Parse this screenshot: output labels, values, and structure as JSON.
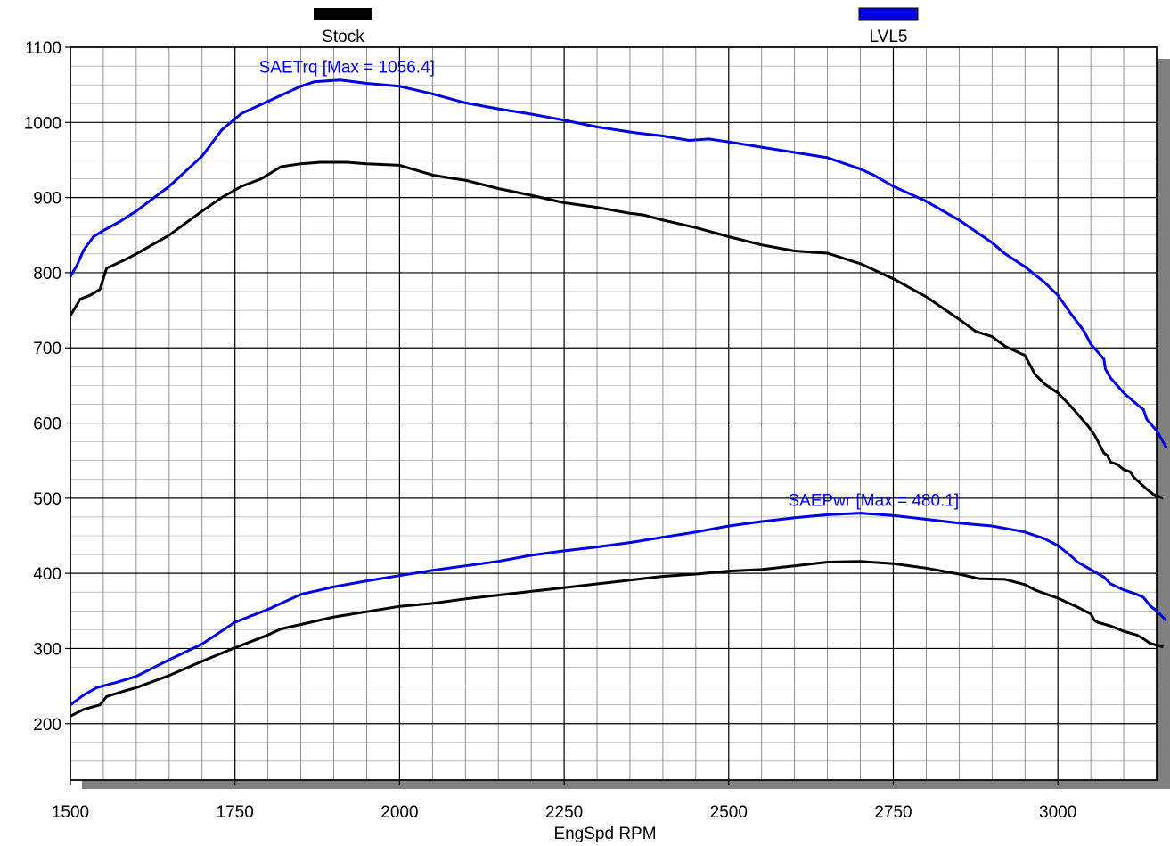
{
  "chart_data": {
    "type": "line",
    "title": "",
    "xlabel": "EngSpd RPM",
    "ylabel": "",
    "xlim": [
      1500,
      3150
    ],
    "ylim": [
      125,
      1100
    ],
    "x_ticks": [
      1500,
      1750,
      2000,
      2250,
      2500,
      2750,
      3000
    ],
    "y_ticks": [
      200,
      300,
      400,
      500,
      600,
      700,
      800,
      900,
      1000,
      1100
    ],
    "grid": true,
    "legend": {
      "placement": "top",
      "entries": [
        {
          "name": "Stock",
          "color": "#000000"
        },
        {
          "name": "LVL5",
          "color": "#0000e0"
        }
      ]
    },
    "annotations": [
      {
        "text": "SAETrq [Max = 1056.4]",
        "color": "#0000e0",
        "x": 1920,
        "y": 1066
      },
      {
        "text": "SAEPwr [Max = 480.1]",
        "color": "#0000e0",
        "x": 2720,
        "y": 490
      }
    ],
    "series": [
      {
        "run": "LVL5",
        "quantity": "SAETrq",
        "color": "#0000e0",
        "points": [
          [
            1500,
            795
          ],
          [
            1510,
            810
          ],
          [
            1520,
            830
          ],
          [
            1535,
            848
          ],
          [
            1550,
            856
          ],
          [
            1575,
            868
          ],
          [
            1600,
            882
          ],
          [
            1650,
            915
          ],
          [
            1700,
            955
          ],
          [
            1730,
            990
          ],
          [
            1760,
            1012
          ],
          [
            1800,
            1028
          ],
          [
            1850,
            1048
          ],
          [
            1870,
            1054
          ],
          [
            1910,
            1056.4
          ],
          [
            1950,
            1052
          ],
          [
            2000,
            1048
          ],
          [
            2050,
            1038
          ],
          [
            2100,
            1026
          ],
          [
            2150,
            1018
          ],
          [
            2200,
            1011
          ],
          [
            2250,
            1003
          ],
          [
            2300,
            994
          ],
          [
            2360,
            986
          ],
          [
            2400,
            982
          ],
          [
            2440,
            976
          ],
          [
            2470,
            978
          ],
          [
            2500,
            974
          ],
          [
            2550,
            967
          ],
          [
            2600,
            960
          ],
          [
            2650,
            953
          ],
          [
            2700,
            938
          ],
          [
            2720,
            930
          ],
          [
            2750,
            915
          ],
          [
            2800,
            895
          ],
          [
            2850,
            870
          ],
          [
            2870,
            858
          ],
          [
            2900,
            840
          ],
          [
            2920,
            825
          ],
          [
            2950,
            808
          ],
          [
            2980,
            787
          ],
          [
            3000,
            770
          ],
          [
            3020,
            745
          ],
          [
            3040,
            722
          ],
          [
            3050,
            705
          ],
          [
            3065,
            690
          ],
          [
            3070,
            685
          ],
          [
            3072,
            672
          ],
          [
            3080,
            660
          ],
          [
            3100,
            640
          ],
          [
            3120,
            625
          ],
          [
            3130,
            618
          ],
          [
            3135,
            605
          ],
          [
            3150,
            590
          ],
          [
            3165,
            567
          ]
        ]
      },
      {
        "run": "Stock",
        "quantity": "SAETrq",
        "color": "#000000",
        "points": [
          [
            1500,
            743
          ],
          [
            1515,
            765
          ],
          [
            1530,
            770
          ],
          [
            1545,
            778
          ],
          [
            1555,
            806
          ],
          [
            1580,
            816
          ],
          [
            1600,
            825
          ],
          [
            1650,
            850
          ],
          [
            1700,
            882
          ],
          [
            1730,
            900
          ],
          [
            1760,
            915
          ],
          [
            1790,
            925
          ],
          [
            1820,
            941
          ],
          [
            1850,
            945
          ],
          [
            1880,
            947
          ],
          [
            1920,
            947
          ],
          [
            1950,
            945
          ],
          [
            2000,
            943
          ],
          [
            2050,
            930
          ],
          [
            2070,
            927
          ],
          [
            2100,
            923
          ],
          [
            2150,
            912
          ],
          [
            2200,
            903
          ],
          [
            2250,
            893
          ],
          [
            2300,
            887
          ],
          [
            2350,
            879
          ],
          [
            2370,
            877
          ],
          [
            2400,
            870
          ],
          [
            2450,
            860
          ],
          [
            2500,
            848
          ],
          [
            2550,
            837
          ],
          [
            2600,
            829
          ],
          [
            2650,
            826
          ],
          [
            2700,
            812
          ],
          [
            2750,
            792
          ],
          [
            2800,
            768
          ],
          [
            2850,
            738
          ],
          [
            2875,
            722
          ],
          [
            2900,
            715
          ],
          [
            2920,
            702
          ],
          [
            2950,
            690
          ],
          [
            2965,
            665
          ],
          [
            2980,
            652
          ],
          [
            3000,
            640
          ],
          [
            3020,
            622
          ],
          [
            3035,
            607
          ],
          [
            3045,
            597
          ],
          [
            3055,
            585
          ],
          [
            3060,
            577
          ],
          [
            3070,
            560
          ],
          [
            3075,
            557
          ],
          [
            3080,
            548
          ],
          [
            3090,
            545
          ],
          [
            3100,
            538
          ],
          [
            3110,
            535
          ],
          [
            3115,
            528
          ],
          [
            3125,
            520
          ],
          [
            3135,
            512
          ],
          [
            3145,
            505
          ],
          [
            3160,
            500
          ]
        ]
      },
      {
        "run": "LVL5",
        "quantity": "SAEPwr",
        "color": "#0000e0",
        "points": [
          [
            1500,
            225
          ],
          [
            1520,
            238
          ],
          [
            1540,
            248
          ],
          [
            1570,
            255
          ],
          [
            1600,
            263
          ],
          [
            1650,
            285
          ],
          [
            1700,
            306
          ],
          [
            1750,
            335
          ],
          [
            1800,
            352
          ],
          [
            1850,
            372
          ],
          [
            1900,
            382
          ],
          [
            1950,
            390
          ],
          [
            2000,
            397
          ],
          [
            2050,
            404
          ],
          [
            2100,
            410
          ],
          [
            2150,
            416
          ],
          [
            2200,
            424
          ],
          [
            2250,
            430
          ],
          [
            2300,
            435
          ],
          [
            2350,
            441
          ],
          [
            2400,
            448
          ],
          [
            2450,
            455
          ],
          [
            2500,
            463
          ],
          [
            2550,
            469
          ],
          [
            2600,
            474
          ],
          [
            2650,
            478
          ],
          [
            2700,
            480.1
          ],
          [
            2750,
            477
          ],
          [
            2800,
            472
          ],
          [
            2850,
            467
          ],
          [
            2900,
            463
          ],
          [
            2950,
            455
          ],
          [
            2980,
            446
          ],
          [
            3000,
            437
          ],
          [
            3020,
            423
          ],
          [
            3030,
            415
          ],
          [
            3040,
            410
          ],
          [
            3050,
            405
          ],
          [
            3060,
            400
          ],
          [
            3070,
            395
          ],
          [
            3080,
            386
          ],
          [
            3100,
            378
          ],
          [
            3120,
            372
          ],
          [
            3130,
            368
          ],
          [
            3140,
            357
          ],
          [
            3150,
            350
          ],
          [
            3165,
            337
          ]
        ]
      },
      {
        "run": "Stock",
        "quantity": "SAEPwr",
        "color": "#000000",
        "points": [
          [
            1500,
            210
          ],
          [
            1520,
            219
          ],
          [
            1545,
            225
          ],
          [
            1555,
            236
          ],
          [
            1580,
            243
          ],
          [
            1600,
            248
          ],
          [
            1650,
            264
          ],
          [
            1700,
            283
          ],
          [
            1750,
            301
          ],
          [
            1800,
            318
          ],
          [
            1820,
            326
          ],
          [
            1850,
            332
          ],
          [
            1900,
            342
          ],
          [
            1950,
            349
          ],
          [
            2000,
            356
          ],
          [
            2050,
            360
          ],
          [
            2100,
            366
          ],
          [
            2150,
            371
          ],
          [
            2200,
            376
          ],
          [
            2250,
            381
          ],
          [
            2300,
            386
          ],
          [
            2350,
            391
          ],
          [
            2400,
            396
          ],
          [
            2450,
            399
          ],
          [
            2500,
            403
          ],
          [
            2550,
            405
          ],
          [
            2600,
            410
          ],
          [
            2650,
            415
          ],
          [
            2700,
            416
          ],
          [
            2750,
            413
          ],
          [
            2800,
            407
          ],
          [
            2850,
            399
          ],
          [
            2880,
            393
          ],
          [
            2920,
            392
          ],
          [
            2950,
            385
          ],
          [
            2965,
            378
          ],
          [
            2980,
            373
          ],
          [
            3000,
            367
          ],
          [
            3030,
            355
          ],
          [
            3050,
            346
          ],
          [
            3055,
            338
          ],
          [
            3060,
            335
          ],
          [
            3080,
            330
          ],
          [
            3100,
            323
          ],
          [
            3120,
            318
          ],
          [
            3130,
            313
          ],
          [
            3140,
            307
          ],
          [
            3160,
            302
          ]
        ]
      }
    ]
  }
}
